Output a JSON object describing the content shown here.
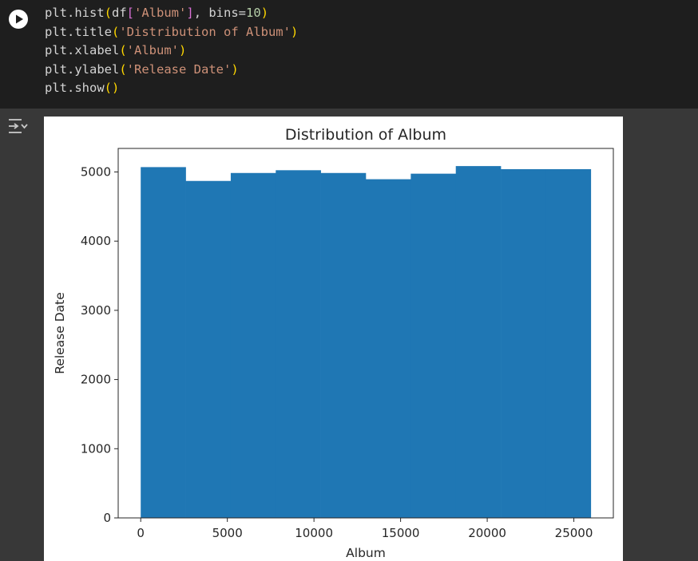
{
  "code_cell": {
    "lines": [
      [
        {
          "t": "plt.hist",
          "c": "plain"
        },
        {
          "t": "(",
          "c": "br1"
        },
        {
          "t": "df",
          "c": "plain"
        },
        {
          "t": "[",
          "c": "br2"
        },
        {
          "t": "'Album'",
          "c": "str"
        },
        {
          "t": "]",
          "c": "br2"
        },
        {
          "t": ", bins=",
          "c": "plain"
        },
        {
          "t": "10",
          "c": "num"
        },
        {
          "t": ")",
          "c": "br1"
        }
      ],
      [
        {
          "t": "plt.title",
          "c": "plain"
        },
        {
          "t": "(",
          "c": "br1"
        },
        {
          "t": "'Distribution of Album'",
          "c": "str"
        },
        {
          "t": ")",
          "c": "br1"
        }
      ],
      [
        {
          "t": "plt.xlabel",
          "c": "plain"
        },
        {
          "t": "(",
          "c": "br1"
        },
        {
          "t": "'Album'",
          "c": "str"
        },
        {
          "t": ")",
          "c": "br1"
        }
      ],
      [
        {
          "t": "plt.ylabel",
          "c": "plain"
        },
        {
          "t": "(",
          "c": "br1"
        },
        {
          "t": "'Release Date'",
          "c": "str"
        },
        {
          "t": ")",
          "c": "br1"
        }
      ],
      [
        {
          "t": "plt.show",
          "c": "plain"
        },
        {
          "t": "(",
          "c": "br1"
        },
        {
          "t": ")",
          "c": "br1"
        }
      ]
    ],
    "run_icon": "play-icon"
  },
  "output": {
    "icon": "output-toggle-icon"
  },
  "chart_data": {
    "type": "bar",
    "title": "Distribution of Album",
    "xlabel": "Album",
    "ylabel": "Release Date",
    "bin_edges": [
      0,
      2598,
      5196,
      7794,
      10392,
      12990,
      15588,
      18186,
      20784,
      23382,
      25980
    ],
    "values": [
      5070,
      4870,
      4985,
      5025,
      4985,
      4895,
      4975,
      5085,
      5040,
      5040
    ],
    "xticks": [
      0,
      5000,
      10000,
      15000,
      20000,
      25000
    ],
    "yticks": [
      0,
      1000,
      2000,
      3000,
      4000,
      5000
    ],
    "xlim": [
      -1300,
      27280
    ],
    "ylim": [
      0,
      5340
    ],
    "color": "#1f77b4"
  }
}
